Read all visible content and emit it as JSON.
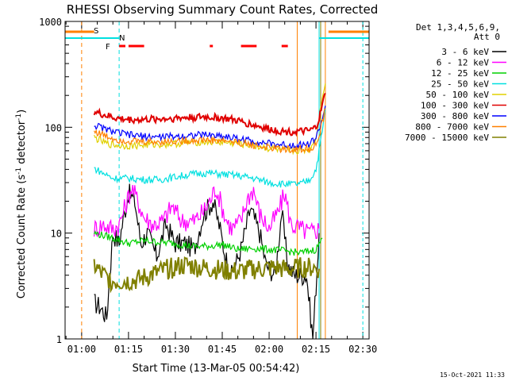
{
  "chart_data": {
    "type": "line",
    "title": "RHESSI Observing Summary Count Rates, Corrected",
    "xlabel": "Start Time (13-Mar-05 00:54:42)",
    "ylabel_main": "Corrected Count Rate (s",
    "ylabel_sup1": "-1",
    "ylabel_mid": " detector",
    "ylabel_sup2": "-1",
    "ylabel_end": ")",
    "footer": "15-Oct-2021 11:33",
    "yscale": "log",
    "ylim": [
      1,
      1000
    ],
    "xlim": [
      "00:54:42",
      "02:32:00"
    ],
    "x_ticks": [
      "01:00",
      "01:15",
      "01:30",
      "01:45",
      "02:00",
      "02:15",
      "02:30"
    ],
    "y_ticks": [
      "1",
      "10",
      "100",
      "1000"
    ],
    "legend": {
      "header_line1": "Det 1,3,4,5,6,9,",
      "header_line2": "Att 0",
      "placement": "outside-right",
      "entries": [
        {
          "label": "3 - 6 keV",
          "color": "#000000"
        },
        {
          "label": "6 - 12 keV",
          "color": "#ff00ff"
        },
        {
          "label": "12 - 25 keV",
          "color": "#00d000"
        },
        {
          "label": "25 - 50 keV",
          "color": "#00e0e0"
        },
        {
          "label": "50 - 100 keV",
          "color": "#e0d000"
        },
        {
          "label": "100 - 300 keV",
          "color": "#e00000"
        },
        {
          "label": "300 - 800 keV",
          "color": "#0000ff"
        },
        {
          "label": "800 - 7000 keV",
          "color": "#ff8000"
        },
        {
          "label": "7000 - 15000 keV",
          "color": "#808000"
        }
      ]
    },
    "flags": {
      "saa_label": "S",
      "night_label": "N",
      "flare_label": "F",
      "saa_color": "#ff8000",
      "night_color": "#00e0e0",
      "flare_color": "#ff0000"
    },
    "series": [
      {
        "name": "3 - 6 keV",
        "color": "#000000",
        "x": [
          "01:04",
          "01:06",
          "01:08",
          "01:10",
          "01:12",
          "01:13",
          "01:15",
          "01:17",
          "01:19",
          "01:21",
          "01:24",
          "01:27",
          "01:30",
          "01:33",
          "01:36",
          "01:39",
          "01:42",
          "01:44",
          "01:46",
          "01:48",
          "01:51",
          "01:54",
          "01:57",
          "01:59",
          "02:02",
          "02:04",
          "02:06",
          "02:08",
          "02:10",
          "02:12",
          "02:14",
          "02:16"
        ],
        "y": [
          2.2,
          2.0,
          1.6,
          10,
          8,
          12,
          24,
          20,
          8,
          10,
          6,
          12,
          8,
          8,
          7,
          15,
          20,
          12,
          6,
          4,
          7,
          17,
          10,
          5,
          4,
          16,
          5,
          4,
          4,
          4,
          1,
          10
        ]
      },
      {
        "name": "6 - 12 keV",
        "color": "#ff00ff",
        "x": [
          "01:04",
          "01:07",
          "01:10",
          "01:12",
          "01:14",
          "01:16",
          "01:18",
          "01:20",
          "01:23",
          "01:26",
          "01:29",
          "01:32",
          "01:36",
          "01:39",
          "01:41",
          "01:43",
          "01:46",
          "01:48",
          "01:51",
          "01:53",
          "01:55",
          "01:57",
          "02:00",
          "02:03",
          "02:05",
          "02:07",
          "02:10",
          "02:13",
          "02:16"
        ],
        "y": [
          11,
          12,
          11,
          12,
          18,
          27,
          20,
          14,
          12,
          13,
          18,
          13,
          13,
          16,
          20,
          27,
          14,
          11,
          13,
          21,
          26,
          15,
          11,
          16,
          24,
          12,
          11,
          10,
          11
        ]
      },
      {
        "name": "12 - 25 keV",
        "color": "#00d000",
        "x": [
          "01:04",
          "01:10",
          "01:15",
          "01:20",
          "01:25",
          "01:30",
          "01:35",
          "01:40",
          "01:45",
          "01:50",
          "01:55",
          "02:00",
          "02:05",
          "02:10",
          "02:15",
          "02:17"
        ],
        "y": [
          10,
          9,
          8,
          8.5,
          8.2,
          8,
          7.5,
          7.5,
          7.8,
          7,
          7.2,
          7,
          6.8,
          6.5,
          7,
          9
        ]
      },
      {
        "name": "25 - 50 keV",
        "color": "#00e0e0",
        "x": [
          "01:04",
          "01:06",
          "01:10",
          "01:15",
          "01:20",
          "01:25",
          "01:30",
          "01:35",
          "01:40",
          "01:45",
          "01:50",
          "01:55",
          "02:00",
          "02:05",
          "02:10",
          "02:13",
          "02:15",
          "02:16",
          "02:17",
          "02:18"
        ],
        "y": [
          41,
          38,
          33,
          33,
          32,
          32,
          34,
          36,
          37,
          36,
          35,
          33,
          30,
          29,
          29,
          32,
          40,
          60,
          90,
          150
        ]
      },
      {
        "name": "50 - 100 keV",
        "color": "#e0d000",
        "x": [
          "01:04",
          "01:08",
          "01:12",
          "01:16",
          "01:20",
          "01:25",
          "01:30",
          "01:35",
          "01:40",
          "01:45",
          "01:50",
          "01:55",
          "02:00",
          "02:05",
          "02:10",
          "02:13",
          "02:15",
          "02:16",
          "02:17",
          "02:18"
        ],
        "y": [
          80,
          70,
          67,
          67,
          68,
          69,
          70,
          72,
          73,
          72,
          70,
          67,
          63,
          60,
          60,
          62,
          80,
          120,
          200,
          260
        ]
      },
      {
        "name": "100 - 300 keV",
        "color": "#e00000",
        "x": [
          "01:04",
          "01:08",
          "01:12",
          "01:16",
          "01:20",
          "01:25",
          "01:30",
          "01:35",
          "01:40",
          "01:45",
          "01:50",
          "01:55",
          "02:00",
          "02:05",
          "02:10",
          "02:13",
          "02:15",
          "02:16",
          "02:17",
          "02:18"
        ],
        "y": [
          140,
          128,
          120,
          118,
          118,
          120,
          122,
          124,
          125,
          122,
          115,
          105,
          96,
          91,
          91,
          92,
          100,
          120,
          160,
          210
        ]
      },
      {
        "name": "300 - 800 keV",
        "color": "#0000ff",
        "x": [
          "01:04",
          "01:08",
          "01:12",
          "01:16",
          "01:20",
          "01:25",
          "01:30",
          "01:35",
          "01:40",
          "01:45",
          "01:50",
          "01:55",
          "02:00",
          "02:05",
          "02:10",
          "02:13",
          "02:15",
          "02:16",
          "02:17",
          "02:18"
        ],
        "y": [
          105,
          95,
          88,
          84,
          82,
          81,
          82,
          84,
          85,
          83,
          78,
          74,
          70,
          68,
          68,
          70,
          80,
          95,
          120,
          160
        ]
      },
      {
        "name": "800 - 7000 keV",
        "color": "#ff8000",
        "x": [
          "01:04",
          "01:08",
          "01:12",
          "01:16",
          "01:20",
          "01:25",
          "01:30",
          "01:35",
          "01:40",
          "01:45",
          "01:50",
          "01:55",
          "02:00",
          "02:05",
          "02:10",
          "02:13",
          "02:15",
          "02:16",
          "02:17",
          "02:18"
        ],
        "y": [
          92,
          82,
          76,
          74,
          73,
          73,
          74,
          75,
          76,
          75,
          72,
          68,
          64,
          62,
          62,
          63,
          68,
          80,
          110,
          150
        ]
      },
      {
        "name": "7000 - 15000 keV",
        "color": "#808000",
        "x": [
          "01:04",
          "01:06",
          "01:08",
          "01:10",
          "01:14",
          "01:18",
          "01:22",
          "01:26",
          "01:30",
          "01:34",
          "01:38",
          "01:42",
          "01:46",
          "01:50",
          "01:54",
          "01:58",
          "02:02",
          "02:06",
          "02:10",
          "02:14",
          "02:16"
        ],
        "y": [
          5,
          4.2,
          3.8,
          3.5,
          3.5,
          3.6,
          4,
          4.4,
          4.8,
          5,
          4.7,
          4.6,
          4.4,
          4.3,
          4.5,
          4.6,
          4.7,
          4.5,
          4.7,
          4.7,
          4.6
        ]
      }
    ]
  }
}
